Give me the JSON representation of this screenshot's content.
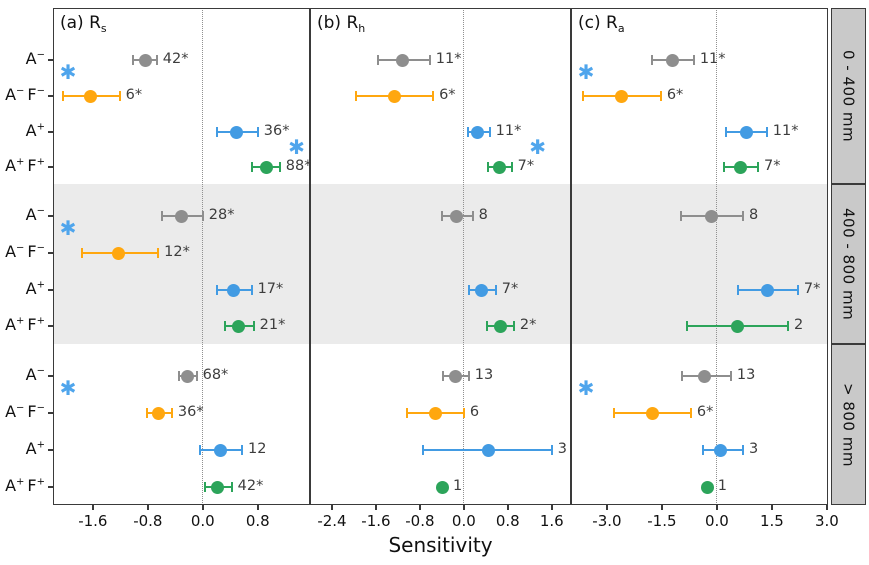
{
  "chart_data": {
    "type": "scatter",
    "subtype": "dot-and-error forest plot, 3 facet columns x 3 facet rows",
    "xlabel": "Sensitivity",
    "panels": {
      "a": {
        "title_prefix": "(a) R",
        "title_sub": "s",
        "ticks": [
          "-1.6",
          "-0.8",
          "0.0",
          "0.8"
        ],
        "range": [
          -2.18,
          1.56
        ]
      },
      "b": {
        "title_prefix": "(b) R",
        "title_sub": "h",
        "ticks": [
          "-2.4",
          "-1.6",
          "-0.8",
          "0.0",
          "0.8",
          "1.6"
        ],
        "range": [
          -2.8,
          1.95
        ]
      },
      "c": {
        "title_prefix": "(c) R",
        "title_sub": "a",
        "ticks": [
          "-3.0",
          "-1.5",
          "0.0",
          "1.5",
          "3.0"
        ],
        "range": [
          -3.98,
          3.03
        ]
      }
    },
    "panel_order": [
      "a",
      "b",
      "c"
    ],
    "groups": [
      {
        "label": "0 - 400 mm",
        "shaded": false
      },
      {
        "label": "400 - 800 mm",
        "shaded": true
      },
      {
        "label": "> 800 mm",
        "shaded": false
      }
    ],
    "categories": [
      {
        "name": "A-",
        "segments": [
          [
            "A",
            "−"
          ]
        ],
        "color": "#8E8E8E"
      },
      {
        "name": "A-F-",
        "segments": [
          [
            "A",
            "−"
          ],
          [
            "F",
            "−"
          ]
        ],
        "color": "#FFA70F"
      },
      {
        "name": "A+",
        "segments": [
          [
            "A",
            "+"
          ]
        ],
        "color": "#429BE3"
      },
      {
        "name": "A+F+",
        "segments": [
          [
            "A",
            "+"
          ],
          [
            "F",
            "+"
          ]
        ],
        "color": "#2CA45A"
      }
    ],
    "points": {
      "a": [
        [
          {
            "v": -0.84,
            "lo": -1.02,
            "hi": -0.67,
            "n": "42*"
          },
          {
            "v": -1.63,
            "lo": -2.04,
            "hi": -1.21,
            "n": "6*"
          },
          {
            "v": 0.49,
            "lo": 0.2,
            "hi": 0.8,
            "n": "36*"
          },
          {
            "v": 0.92,
            "lo": 0.71,
            "hi": 1.12,
            "n": "88*"
          }
        ],
        [
          {
            "v": -0.31,
            "lo": -0.6,
            "hi": 0.0,
            "n": "28*"
          },
          {
            "v": -1.22,
            "lo": -1.76,
            "hi": -0.65,
            "n": "12*"
          },
          {
            "v": 0.44,
            "lo": 0.2,
            "hi": 0.71,
            "n": "17*"
          },
          {
            "v": 0.52,
            "lo": 0.32,
            "hi": 0.74,
            "n": "21*"
          }
        ],
        [
          {
            "v": -0.22,
            "lo": -0.35,
            "hi": -0.09,
            "n": "68*"
          },
          {
            "v": -0.65,
            "lo": -0.81,
            "hi": -0.45,
            "n": "36*"
          },
          {
            "v": 0.26,
            "lo": -0.04,
            "hi": 0.57,
            "n": "12"
          },
          {
            "v": 0.22,
            "lo": 0.03,
            "hi": 0.42,
            "n": "42*"
          }
        ]
      ],
      "b": [
        [
          {
            "v": -1.11,
            "lo": -1.56,
            "hi": -0.62,
            "n": "11*"
          },
          {
            "v": -1.27,
            "lo": -1.96,
            "hi": -0.56,
            "n": "6*"
          },
          {
            "v": 0.25,
            "lo": 0.07,
            "hi": 0.47,
            "n": "11*"
          },
          {
            "v": 0.65,
            "lo": 0.44,
            "hi": 0.87,
            "n": "7*"
          }
        ],
        [
          {
            "v": -0.13,
            "lo": -0.4,
            "hi": 0.16,
            "n": "8"
          },
          null,
          {
            "v": 0.33,
            "lo": 0.09,
            "hi": 0.58,
            "n": "7*"
          },
          {
            "v": 0.67,
            "lo": 0.42,
            "hi": 0.91,
            "n": "2*"
          }
        ],
        [
          {
            "v": -0.16,
            "lo": -0.38,
            "hi": 0.09,
            "n": "13"
          },
          {
            "v": -0.51,
            "lo": -1.04,
            "hi": 0.0,
            "n": "6"
          },
          {
            "v": 0.44,
            "lo": -0.75,
            "hi": 1.6,
            "n": "3"
          },
          {
            "v": -0.38,
            "n": "1"
          }
        ]
      ],
      "c": [
        [
          {
            "v": -1.2,
            "lo": -1.77,
            "hi": -0.63,
            "n": "11*"
          },
          {
            "v": -2.59,
            "lo": -3.65,
            "hi": -1.53,
            "n": "6*"
          },
          {
            "v": 0.82,
            "lo": 0.25,
            "hi": 1.36,
            "n": "11*"
          },
          {
            "v": 0.65,
            "lo": 0.19,
            "hi": 1.12,
            "n": "7*"
          }
        ],
        [
          {
            "v": -0.16,
            "lo": -0.98,
            "hi": 0.71,
            "n": "8"
          },
          null,
          {
            "v": 1.39,
            "lo": 0.57,
            "hi": 2.21,
            "n": "7*"
          },
          {
            "v": 0.57,
            "lo": -0.82,
            "hi": 1.94,
            "n": "2"
          }
        ],
        [
          {
            "v": -0.33,
            "lo": -0.95,
            "hi": 0.38,
            "n": "13"
          },
          {
            "v": -1.77,
            "lo": -2.81,
            "hi": -0.71,
            "n": "6*"
          },
          {
            "v": 0.11,
            "lo": -0.38,
            "hi": 0.71,
            "n": "3"
          },
          {
            "v": -0.25,
            "n": "1"
          }
        ]
      ]
    },
    "significance_asterisks": [
      {
        "panel": "a",
        "group": 0,
        "side": "left"
      },
      {
        "panel": "a",
        "group": 0,
        "side": "right"
      },
      {
        "panel": "b",
        "group": 0,
        "side": "right"
      },
      {
        "panel": "c",
        "group": 0,
        "side": "left"
      },
      {
        "panel": "a",
        "group": 1,
        "side": "left"
      },
      {
        "panel": "a",
        "group": 2,
        "side": "left"
      },
      {
        "panel": "c",
        "group": 2,
        "side": "left"
      }
    ],
    "colors": {
      "shaded_band": "#EBEBEB",
      "strip_bg": "#C9C9C9",
      "frame_border": "#3A3A3A",
      "zero_line": "#909090",
      "asterisk": "#4FA5EC",
      "count_label_text": "#3d3d3d"
    },
    "asterisk_glyph": "✱"
  }
}
